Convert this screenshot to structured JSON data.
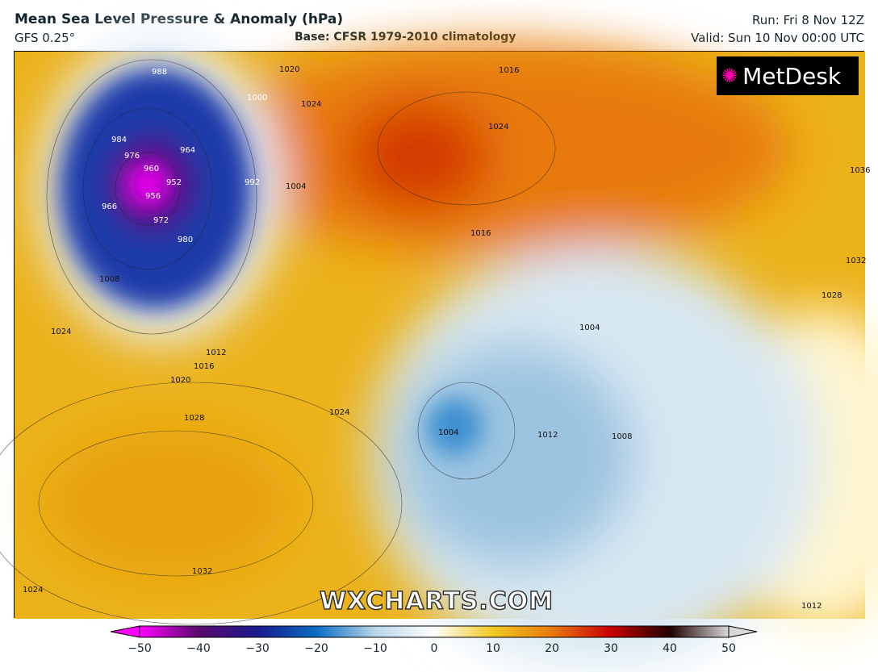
{
  "header": {
    "title": "Mean Sea Level Pressure & Anomaly (hPa)",
    "model": "GFS 0.25°",
    "base": "Base: CFSR 1979-2010 climatology",
    "run": "Run: Fri 8 Nov 12Z",
    "valid": "Valid: Sun 10 Nov 00:00 UTC"
  },
  "logo": {
    "text": "MetDesk"
  },
  "watermark": "WXCHARTS.COM",
  "isobar_labels": [
    "988",
    "984",
    "976",
    "964",
    "960",
    "952",
    "956",
    "966",
    "972",
    "980",
    "1000",
    "992",
    "1004",
    "1020",
    "1024",
    "1016",
    "1024",
    "1016",
    "1008",
    "1012",
    "1016",
    "1020",
    "1028",
    "1024",
    "1024",
    "1032",
    "1024",
    "1004",
    "1004",
    "1012",
    "1008",
    "1032",
    "1028",
    "1036",
    "1012"
  ],
  "colorbar": {
    "ticks": [
      "−50",
      "−40",
      "−30",
      "−20",
      "−10",
      "0",
      "10",
      "20",
      "30",
      "40",
      "50"
    ],
    "min": -50,
    "max": 50,
    "colors": [
      "#ff00ff",
      "#5a0a6e",
      "#1a1a8c",
      "#0a6cc4",
      "#b8d6e8",
      "#ffffff",
      "#f0c820",
      "#e87a10",
      "#c80000",
      "#200000",
      "#d8d8d8"
    ]
  }
}
